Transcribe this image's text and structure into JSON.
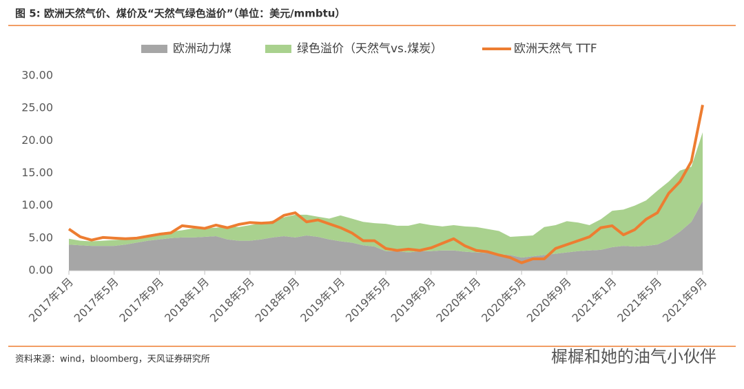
{
  "chart_data": {
    "type": "stacked-area-line",
    "title": "图 5:    欧洲天然气价、煤价及“天然气绿色溢价”（单位：美元/mmbtu）",
    "source": "资料来源：wind，bloomberg，天风证券研究所",
    "watermark": "樨樨和她的油气小伙伴",
    "categories": [
      "2017年1月",
      null,
      null,
      null,
      "2017年5月",
      null,
      null,
      null,
      "2017年9月",
      null,
      null,
      null,
      "2018年1月",
      null,
      null,
      null,
      "2018年5月",
      null,
      null,
      null,
      "2018年9月",
      null,
      null,
      null,
      "2019年1月",
      null,
      null,
      null,
      "2019年5月",
      null,
      null,
      null,
      "2019年9月",
      null,
      null,
      null,
      "2020年1月",
      null,
      null,
      null,
      "2020年5月",
      null,
      null,
      null,
      "2020年9月",
      null,
      null,
      null,
      "2021年1月",
      null,
      null,
      null,
      "2021年5月",
      null,
      null,
      null,
      "2021年9月"
    ],
    "series": [
      {
        "name": "欧洲动力煤",
        "color": "#a6a6a6",
        "kind": "area",
        "values": [
          4.0,
          3.9,
          3.8,
          3.8,
          3.8,
          4.0,
          4.3,
          4.6,
          4.8,
          5.0,
          5.1,
          5.1,
          5.2,
          5.3,
          4.8,
          4.6,
          4.6,
          4.8,
          5.1,
          5.3,
          5.1,
          5.4,
          5.2,
          4.8,
          4.5,
          4.3,
          3.9,
          3.7,
          3.0,
          3.0,
          2.8,
          3.0,
          3.0,
          3.1,
          3.1,
          2.9,
          2.8,
          2.7,
          2.5,
          2.4,
          2.0,
          2.2,
          2.4,
          2.6,
          2.8,
          3.0,
          3.1,
          3.2,
          3.6,
          3.8,
          3.7,
          3.8,
          4.0,
          4.8,
          6.0,
          7.5,
          10.7
        ]
      },
      {
        "name": "绿色溢价（天然气vs.煤炭）",
        "color": "#a9d18e",
        "kind": "area",
        "values": [
          0.9,
          0.7,
          0.7,
          0.8,
          0.9,
          0.8,
          0.7,
          0.9,
          1.0,
          1.0,
          1.1,
          1.4,
          1.3,
          1.3,
          2.0,
          2.1,
          2.4,
          2.5,
          2.6,
          2.9,
          3.5,
          3.2,
          3.1,
          3.2,
          4.0,
          3.7,
          3.6,
          3.6,
          4.2,
          3.9,
          4.1,
          4.3,
          4.0,
          3.7,
          3.9,
          3.9,
          3.9,
          3.7,
          3.6,
          2.8,
          3.3,
          3.2,
          4.3,
          4.4,
          4.8,
          4.4,
          3.9,
          4.7,
          5.6,
          5.6,
          6.3,
          7.0,
          8.3,
          8.9,
          9.4,
          8.5,
          10.6
        ]
      },
      {
        "name": "欧洲天然气 TTF",
        "color": "#ed7d31",
        "kind": "line",
        "values": [
          6.4,
          5.2,
          4.7,
          5.1,
          5.0,
          4.9,
          5.0,
          5.3,
          5.6,
          5.8,
          6.9,
          6.7,
          6.5,
          7.0,
          6.6,
          7.1,
          7.4,
          7.3,
          7.4,
          8.5,
          8.9,
          7.5,
          7.8,
          7.2,
          6.6,
          5.8,
          4.6,
          4.6,
          3.4,
          3.1,
          3.3,
          3.1,
          3.5,
          4.2,
          4.9,
          3.8,
          3.1,
          2.9,
          2.4,
          2.0,
          1.2,
          1.8,
          1.8,
          3.4,
          4.0,
          4.6,
          5.2,
          6.6,
          6.9,
          5.5,
          6.3,
          7.9,
          8.9,
          11.9,
          13.7,
          16.8,
          25.5
        ]
      }
    ],
    "ylim": [
      0,
      30
    ],
    "yticks": [
      {
        "value": 0,
        "label": "0.00"
      },
      {
        "value": 5,
        "label": "5.00"
      },
      {
        "value": 10,
        "label": "10.00"
      },
      {
        "value": 15,
        "label": "15.00"
      },
      {
        "value": 20,
        "label": "20.00"
      },
      {
        "value": 25,
        "label": "25.00"
      },
      {
        "value": 30,
        "label": "30.00"
      }
    ]
  }
}
